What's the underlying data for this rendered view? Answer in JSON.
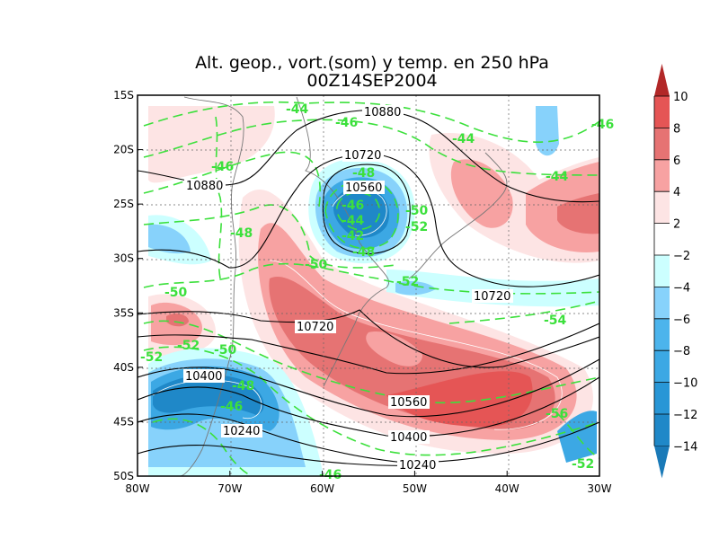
{
  "chart_data": {
    "type": "heatmap",
    "title": "Alt. geop., vort.(som) y temp. en 250 hPa",
    "subtitle": "00Z14SEP2004",
    "x_ticks": [
      "80W",
      "70W",
      "60W",
      "50W",
      "40W",
      "30W"
    ],
    "y_ticks": [
      "15S",
      "20S",
      "25S",
      "30S",
      "35S",
      "40S",
      "45S",
      "50S"
    ],
    "xlim": [
      -80,
      -30
    ],
    "ylim": [
      -50,
      -15
    ],
    "grid": true,
    "shaded_field": "vorticity",
    "colorbar": {
      "levels": [
        {
          "label": "10",
          "color": "#e55555"
        },
        {
          "label": "8",
          "color": "#e67373"
        },
        {
          "label": "6",
          "color": "#f7a2a2"
        },
        {
          "label": "4",
          "color": "#fde4e4"
        },
        {
          "label": "2",
          "color": "#ffffff"
        },
        {
          "label": "-2",
          "color": "#ccffff"
        },
        {
          "label": "-4",
          "color": "#87d2fb"
        },
        {
          "label": "-6",
          "color": "#4cb4ec"
        },
        {
          "label": "-8",
          "color": "#3ca8e4"
        },
        {
          "label": "-10",
          "color": "#2896d6"
        },
        {
          "label": "-12",
          "color": "#1f88c8"
        },
        {
          "label": "-14",
          "color": "#1a7ab8"
        }
      ],
      "top_color": "#b22828",
      "bottom_color": "#1a7ab8"
    },
    "height_contours": [
      {
        "text": "10880"
      },
      {
        "text": "10880"
      },
      {
        "text": "10720"
      },
      {
        "text": "10560"
      },
      {
        "text": "10720"
      },
      {
        "text": "10720"
      },
      {
        "text": "10560"
      },
      {
        "text": "10400"
      },
      {
        "text": "10400"
      },
      {
        "text": "10240"
      },
      {
        "text": "10240"
      }
    ],
    "temperature_contours": [
      {
        "text": "-44"
      },
      {
        "text": "-46"
      },
      {
        "text": "-44"
      },
      {
        "text": "-44"
      },
      {
        "text": "-46"
      },
      {
        "text": "-48"
      },
      {
        "text": "-46"
      },
      {
        "text": "-44"
      },
      {
        "text": "-42"
      },
      {
        "text": "-48"
      },
      {
        "text": "-50"
      },
      {
        "text": "-52"
      },
      {
        "text": "-48"
      },
      {
        "text": "-50"
      },
      {
        "text": "-52"
      },
      {
        "text": "-50"
      },
      {
        "text": "-54"
      },
      {
        "text": "-52"
      },
      {
        "text": "-52"
      },
      {
        "text": "-50"
      },
      {
        "text": "-48"
      },
      {
        "text": "-46"
      },
      {
        "text": "-56"
      },
      {
        "text": "-52"
      },
      {
        "text": "-46"
      },
      {
        "text": "-46"
      }
    ]
  }
}
